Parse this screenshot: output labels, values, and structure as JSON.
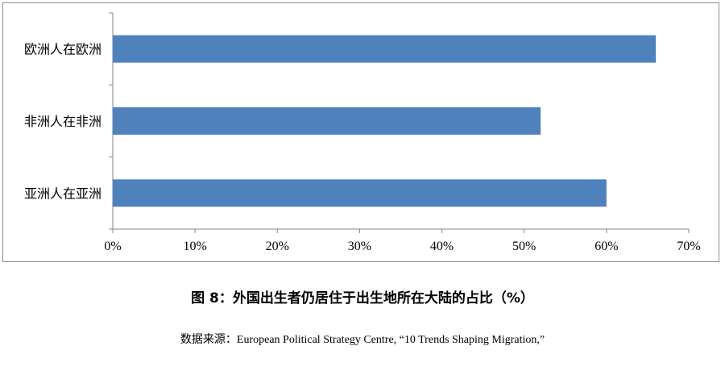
{
  "chart_data": {
    "type": "bar",
    "orientation": "horizontal",
    "categories": [
      "欧洲人在欧洲",
      "非洲人在非洲",
      "亚洲人在亚洲"
    ],
    "values": [
      66,
      52,
      60
    ],
    "unit": "%",
    "xlim": [
      0,
      70
    ],
    "xticks": [
      "0%",
      "10%",
      "20%",
      "30%",
      "40%",
      "50%",
      "60%",
      "70%"
    ],
    "grid": false,
    "legend": "none",
    "bar_color": "#4F81BD"
  },
  "caption": "图 8：外国出生者仍居住于出生地所在大陆的占比（%）",
  "source": "数据来源：European Political Strategy Centre, “10 Trends Shaping Migration,”"
}
